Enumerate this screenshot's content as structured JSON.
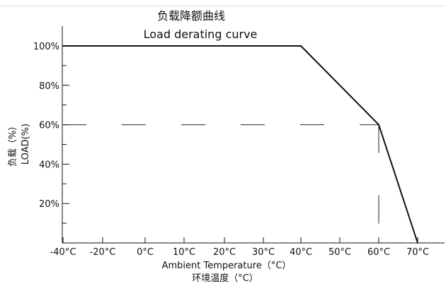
{
  "chart_data": {
    "type": "line",
    "title": "负载降额曲线",
    "subtitle": "Load derating curve",
    "xlabel": "Ambient Temperature（°C）",
    "xlabel_cn": "环境温度（°C）",
    "ylabel": "负载（%）",
    "ylabel_en": "LOAD(%)",
    "x_unit": "°C",
    "xlim": [
      -40,
      70
    ],
    "ylim": [
      0,
      100
    ],
    "x_ticks": [
      "-40°C",
      "-20°C",
      "0°C",
      "10°C",
      "20°C",
      "30°C",
      "40°C",
      "50°C",
      "60°C",
      "70°C"
    ],
    "y_ticks": [
      "20%",
      "40%",
      "60%",
      "80%",
      "100%"
    ],
    "series": [
      {
        "x": [
          -40,
          40,
          60,
          70
        ],
        "y": [
          100,
          100,
          60,
          0
        ]
      }
    ],
    "reference_lines": [
      {
        "type": "horizontal",
        "y": 60,
        "style": "dashed"
      },
      {
        "type": "vertical",
        "x": 60,
        "style": "dashed"
      }
    ],
    "grid": false,
    "line_color": "#111111"
  }
}
